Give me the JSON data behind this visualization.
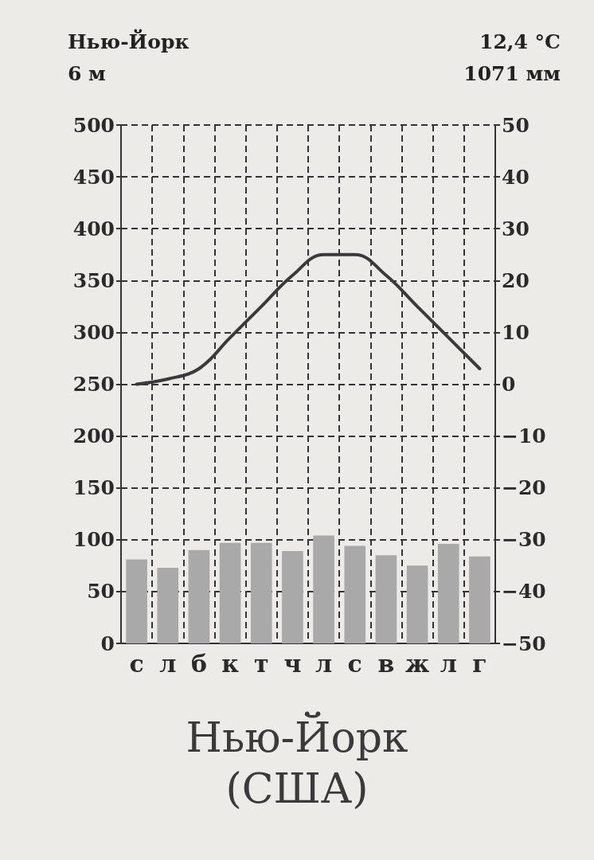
{
  "chart_data": {
    "type": "bar",
    "title": "Нью-Йорк",
    "subtitle": "(США)",
    "annotations": [
      "Нью-Йорк",
      "6 м",
      "12,4 °C",
      "1071 мм"
    ],
    "categories": [
      "с",
      "л",
      "б",
      "к",
      "т",
      "ч",
      "л",
      "с",
      "в",
      "ж",
      "л",
      "г"
    ],
    "series": [
      {
        "color": "#a9a9a9",
        "values": [
          81,
          73,
          90,
          97,
          97,
          89,
          104,
          94,
          85,
          75,
          96,
          84
        ]
      },
      {
        "type": "line",
        "axis": "y2",
        "color": "#3a3a3a",
        "values": [
          0,
          1,
          3,
          9,
          15,
          21,
          25,
          25,
          21,
          15,
          9,
          3
        ]
      }
    ],
    "ylim": [
      0,
      500
    ],
    "yticks": [
      0,
      50,
      100,
      150,
      200,
      250,
      300,
      350,
      400,
      450,
      500
    ],
    "y2lim": [
      -50,
      50
    ],
    "y2ticks": [
      {
        "value": -50,
        "label": "−50"
      },
      {
        "value": -40,
        "label": "−40"
      },
      {
        "value": -30,
        "label": "−30"
      },
      {
        "value": -20,
        "label": "−20"
      },
      {
        "value": -10,
        "label": "−10"
      },
      0,
      10,
      20,
      30,
      40,
      50
    ],
    "grid": true,
    "marker": "none",
    "line_style": "solid"
  }
}
